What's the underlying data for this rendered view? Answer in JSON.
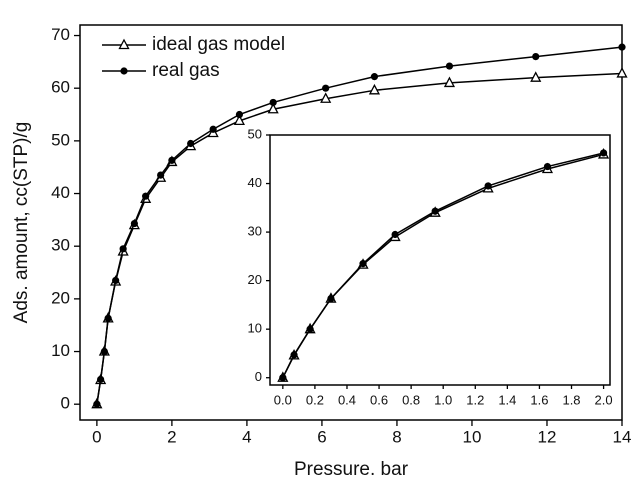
{
  "chart_data": [
    {
      "type": "line",
      "x_label": "Pressure. bar",
      "y_label": "Ads. amount, cc(STP)/g",
      "x": [
        0,
        0.1,
        0.2,
        0.3,
        0.5,
        0.7,
        1.0,
        1.3,
        1.7,
        2.0,
        2.5,
        3.1,
        3.8,
        4.7,
        6.1,
        7.4,
        9.4,
        11.7,
        14.0
      ],
      "series": [
        {
          "name": "ideal gas model",
          "color": "#000000",
          "marker": "triangle-open",
          "values": [
            0,
            4.6,
            10,
            16.3,
            23.3,
            29,
            34,
            39,
            43,
            46,
            49,
            51.5,
            53.8,
            56,
            58,
            59.6,
            61,
            62,
            62.8
          ]
        },
        {
          "name": "real gas",
          "color": "#000000",
          "marker": "circle-filled",
          "values": [
            0,
            4.7,
            10,
            16.3,
            23.5,
            29.5,
            34.3,
            39.5,
            43.5,
            46.3,
            49.5,
            52.2,
            55,
            57.3,
            60,
            62.2,
            64.2,
            66,
            67.8
          ]
        }
      ],
      "xlim": [
        -0.45,
        14
      ],
      "ylim": [
        -3,
        72
      ],
      "xticks": [
        0,
        2,
        4,
        6,
        8,
        10,
        12,
        14
      ],
      "yticks": [
        0,
        10,
        20,
        30,
        40,
        50,
        60,
        70
      ],
      "legend": "upper left"
    },
    {
      "type": "line",
      "x": [
        0,
        0.07,
        0.17,
        0.3,
        0.5,
        0.7,
        0.95,
        1.28,
        1.65,
        2.0
      ],
      "series": [
        {
          "color": "#000000",
          "marker": "triangle-open",
          "values": [
            0,
            4.6,
            10,
            16.3,
            23.3,
            29,
            34,
            39,
            43,
            46
          ]
        },
        {
          "color": "#000000",
          "marker": "circle-filled",
          "values": [
            0,
            4.7,
            10,
            16.3,
            23.5,
            29.5,
            34.3,
            39.5,
            43.5,
            46.3
          ]
        }
      ],
      "xlim": [
        -0.08,
        2.04
      ],
      "ylim": [
        -1.5,
        50
      ],
      "xticks": [
        {
          "value": 0,
          "label": "0.0"
        },
        {
          "value": 0.2,
          "label": "0.2"
        },
        {
          "value": 0.4,
          "label": "0.4"
        },
        {
          "value": 0.6,
          "label": "0.6"
        },
        {
          "value": 0.8,
          "label": "0.8"
        },
        {
          "value": 1.0,
          "label": "1.0"
        },
        {
          "value": 1.2,
          "label": "1.2"
        },
        {
          "value": 1.4,
          "label": "1.4"
        },
        {
          "value": 1.6,
          "label": "1.6"
        },
        {
          "value": 1.8,
          "label": "1.8"
        },
        {
          "value": 2.0,
          "label": "2.0"
        }
      ],
      "yticks": [
        0,
        10,
        20,
        30,
        40,
        50
      ]
    }
  ]
}
